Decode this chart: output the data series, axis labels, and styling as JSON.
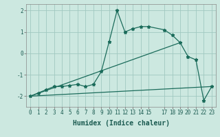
{
  "xlabel": "Humidex (Indice chaleur)",
  "background_color": "#cce8e0",
  "grid_color": "#a0c8c0",
  "line_color": "#1a6b5a",
  "xlim": [
    -0.5,
    23.5
  ],
  "ylim": [
    -2.5,
    2.3
  ],
  "xtick_vals": [
    0,
    1,
    2,
    3,
    4,
    5,
    6,
    7,
    8,
    9,
    10,
    11,
    12,
    13,
    14,
    15,
    17,
    18,
    19,
    20,
    21,
    22,
    23
  ],
  "ytick_vals": [
    -2,
    -1,
    0,
    1,
    2
  ],
  "curve_x": [
    0,
    1,
    2,
    3,
    4,
    5,
    6,
    7,
    8,
    9,
    10,
    11,
    12,
    13,
    14,
    15,
    17,
    18,
    19,
    20,
    21,
    22,
    23
  ],
  "curve_y": [
    -2.0,
    -1.85,
    -1.7,
    -1.55,
    -1.55,
    -1.5,
    -1.45,
    -1.55,
    -1.45,
    -0.85,
    0.55,
    2.0,
    1.0,
    1.15,
    1.25,
    1.25,
    1.1,
    0.85,
    0.5,
    -0.15,
    -0.3,
    -2.2,
    -1.55
  ],
  "line1_x": [
    0,
    23
  ],
  "line1_y": [
    -2.0,
    -1.55
  ],
  "line2_x": [
    0,
    19
  ],
  "line2_y": [
    -2.0,
    0.5
  ],
  "marker_style": "*",
  "marker_size": 3.5,
  "line_width": 0.9,
  "fontsize_xlabel": 7,
  "fontsize_ticks": 5.5
}
